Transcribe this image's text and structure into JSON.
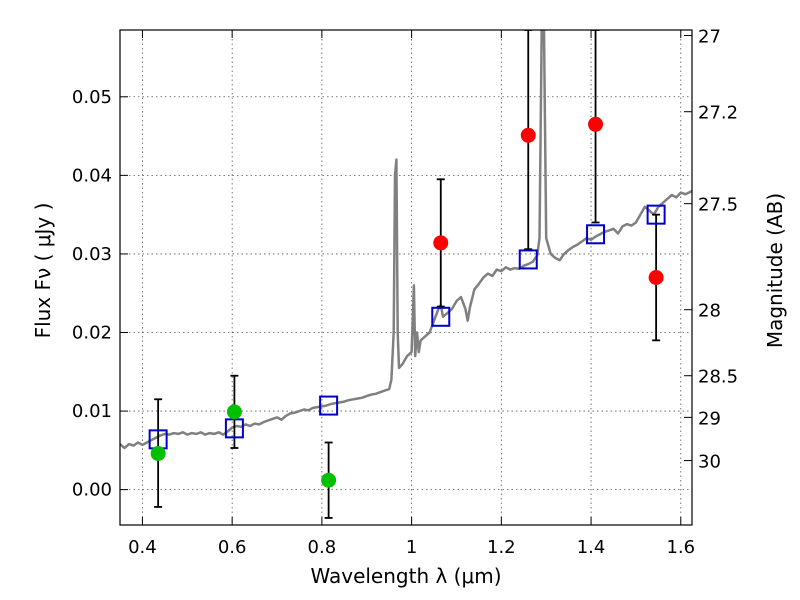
{
  "chart_data": {
    "type": "scatter",
    "xlabel": "Wavelength  λ (μm)",
    "ylabel": "Flux  Fν  ( μJy )",
    "ylabel_right": "Magnitude (AB)",
    "xlim": [
      0.35,
      1.625
    ],
    "ylim": [
      -0.0045,
      0.0585
    ],
    "grid": true,
    "x_ticks": [
      {
        "v": 0.4,
        "label": "0.4"
      },
      {
        "v": 0.6,
        "label": "0.6"
      },
      {
        "v": 0.8,
        "label": "0.8"
      },
      {
        "v": 1.0,
        "label": "1"
      },
      {
        "v": 1.2,
        "label": "1.2"
      },
      {
        "v": 1.4,
        "label": "1.4"
      },
      {
        "v": 1.6,
        "label": "1.6"
      }
    ],
    "y_ticks": [
      {
        "v": 0.0,
        "label": "0.00"
      },
      {
        "v": 0.01,
        "label": "0.01"
      },
      {
        "v": 0.02,
        "label": "0.02"
      },
      {
        "v": 0.03,
        "label": "0.03"
      },
      {
        "v": 0.04,
        "label": "0.04"
      },
      {
        "v": 0.05,
        "label": "0.05"
      }
    ],
    "y2_ticks": [
      {
        "flux": 0.0578,
        "label": "27"
      },
      {
        "flux": 0.0481,
        "label": "27.2"
      },
      {
        "flux": 0.0364,
        "label": "27.5"
      },
      {
        "flux": 0.0229,
        "label": "28"
      },
      {
        "flux": 0.0145,
        "label": "28.5"
      },
      {
        "flux": 0.0092,
        "label": "29"
      },
      {
        "flux": 0.0037,
        "label": "30"
      }
    ],
    "model_spectrum": {
      "color": "#808080",
      "points": [
        [
          0.35,
          0.0058
        ],
        [
          0.36,
          0.0053
        ],
        [
          0.37,
          0.0058
        ],
        [
          0.38,
          0.0056
        ],
        [
          0.39,
          0.006
        ],
        [
          0.4,
          0.0057
        ],
        [
          0.41,
          0.006
        ],
        [
          0.42,
          0.0063
        ],
        [
          0.43,
          0.0066
        ],
        [
          0.44,
          0.0069
        ],
        [
          0.45,
          0.0071
        ],
        [
          0.46,
          0.007
        ],
        [
          0.47,
          0.0072
        ],
        [
          0.48,
          0.0071
        ],
        [
          0.49,
          0.0073
        ],
        [
          0.5,
          0.007
        ],
        [
          0.51,
          0.0072
        ],
        [
          0.52,
          0.0071
        ],
        [
          0.53,
          0.0073
        ],
        [
          0.54,
          0.007
        ],
        [
          0.55,
          0.0072
        ],
        [
          0.56,
          0.0071
        ],
        [
          0.57,
          0.0073
        ],
        [
          0.58,
          0.007
        ],
        [
          0.59,
          0.0074
        ],
        [
          0.6,
          0.0079
        ],
        [
          0.61,
          0.0081
        ],
        [
          0.62,
          0.008
        ],
        [
          0.63,
          0.0083
        ],
        [
          0.64,
          0.0081
        ],
        [
          0.65,
          0.0084
        ],
        [
          0.66,
          0.0083
        ],
        [
          0.67,
          0.0086
        ],
        [
          0.68,
          0.0088
        ],
        [
          0.69,
          0.009
        ],
        [
          0.7,
          0.0092
        ],
        [
          0.71,
          0.0089
        ],
        [
          0.72,
          0.0094
        ],
        [
          0.73,
          0.0097
        ],
        [
          0.74,
          0.0098
        ],
        [
          0.75,
          0.01
        ],
        [
          0.76,
          0.0102
        ],
        [
          0.77,
          0.0101
        ],
        [
          0.78,
          0.0104
        ],
        [
          0.79,
          0.0105
        ],
        [
          0.8,
          0.0106
        ],
        [
          0.81,
          0.0107
        ],
        [
          0.82,
          0.0109
        ],
        [
          0.83,
          0.011
        ],
        [
          0.84,
          0.0111
        ],
        [
          0.85,
          0.0112
        ],
        [
          0.86,
          0.0114
        ],
        [
          0.87,
          0.0115
        ],
        [
          0.88,
          0.0116
        ],
        [
          0.89,
          0.0117
        ],
        [
          0.9,
          0.0119
        ],
        [
          0.91,
          0.0121
        ],
        [
          0.92,
          0.0122
        ],
        [
          0.93,
          0.0124
        ],
        [
          0.94,
          0.0126
        ],
        [
          0.95,
          0.0128
        ],
        [
          0.955,
          0.014
        ],
        [
          0.96,
          0.02
        ],
        [
          0.963,
          0.04
        ],
        [
          0.966,
          0.042
        ],
        [
          0.969,
          0.02
        ],
        [
          0.972,
          0.0155
        ],
        [
          0.98,
          0.016
        ],
        [
          0.99,
          0.017
        ],
        [
          1.0,
          0.0175
        ],
        [
          1.005,
          0.026
        ],
        [
          1.008,
          0.017
        ],
        [
          1.012,
          0.02
        ],
        [
          1.016,
          0.0175
        ],
        [
          1.02,
          0.019
        ],
        [
          1.03,
          0.0195
        ],
        [
          1.04,
          0.02
        ],
        [
          1.05,
          0.0215
        ],
        [
          1.06,
          0.023
        ],
        [
          1.065,
          0.0235
        ],
        [
          1.07,
          0.022
        ],
        [
          1.08,
          0.0225
        ],
        [
          1.09,
          0.023
        ],
        [
          1.1,
          0.024
        ],
        [
          1.11,
          0.0245
        ],
        [
          1.12,
          0.023
        ],
        [
          1.125,
          0.0215
        ],
        [
          1.13,
          0.0232
        ],
        [
          1.14,
          0.0255
        ],
        [
          1.15,
          0.0262
        ],
        [
          1.16,
          0.027
        ],
        [
          1.17,
          0.0275
        ],
        [
          1.18,
          0.0272
        ],
        [
          1.19,
          0.028
        ],
        [
          1.2,
          0.0278
        ],
        [
          1.21,
          0.0283
        ],
        [
          1.22,
          0.028
        ],
        [
          1.23,
          0.0282
        ],
        [
          1.24,
          0.0281
        ],
        [
          1.25,
          0.0285
        ],
        [
          1.26,
          0.0287
        ],
        [
          1.27,
          0.029
        ],
        [
          1.28,
          0.0298
        ],
        [
          1.285,
          0.032
        ],
        [
          1.29,
          0.0585
        ],
        [
          1.295,
          0.0585
        ],
        [
          1.3,
          0.032
        ],
        [
          1.31,
          0.03
        ],
        [
          1.32,
          0.0295
        ],
        [
          1.33,
          0.0292
        ],
        [
          1.34,
          0.03
        ],
        [
          1.35,
          0.0305
        ],
        [
          1.36,
          0.0309
        ],
        [
          1.37,
          0.0312
        ],
        [
          1.38,
          0.0316
        ],
        [
          1.39,
          0.032
        ],
        [
          1.4,
          0.0318
        ],
        [
          1.41,
          0.0322
        ],
        [
          1.42,
          0.0325
        ],
        [
          1.43,
          0.0328
        ],
        [
          1.44,
          0.033
        ],
        [
          1.45,
          0.0332
        ],
        [
          1.46,
          0.0326
        ],
        [
          1.47,
          0.0335
        ],
        [
          1.48,
          0.0338
        ],
        [
          1.49,
          0.0336
        ],
        [
          1.5,
          0.034
        ],
        [
          1.51,
          0.035
        ],
        [
          1.52,
          0.036
        ],
        [
          1.53,
          0.0355
        ],
        [
          1.54,
          0.035
        ],
        [
          1.55,
          0.036
        ],
        [
          1.56,
          0.0365
        ],
        [
          1.57,
          0.037
        ],
        [
          1.58,
          0.0375
        ],
        [
          1.59,
          0.0372
        ],
        [
          1.6,
          0.0378
        ],
        [
          1.61,
          0.0376
        ],
        [
          1.625,
          0.038
        ]
      ]
    },
    "series": [
      {
        "marker": "circle",
        "color": "#00c000",
        "points": [
          {
            "x": 0.435,
            "y": 0.0046,
            "err_low": -0.0022,
            "err_high": 0.0115
          },
          {
            "x": 0.605,
            "y": 0.0099,
            "err_low": 0.0053,
            "err_high": 0.0145
          },
          {
            "x": 0.815,
            "y": 0.0012,
            "err_low": -0.0036,
            "err_high": 0.006
          }
        ]
      },
      {
        "marker": "circle",
        "color": "#ff0000",
        "points": [
          {
            "x": 1.065,
            "y": 0.0314,
            "err_low": 0.0233,
            "err_high": 0.0395
          },
          {
            "x": 1.26,
            "y": 0.0451,
            "err_low": 0.0306,
            "err_high": 0.0585
          },
          {
            "x": 1.41,
            "y": 0.0465,
            "err_low": 0.034,
            "err_high": 0.0585
          },
          {
            "x": 1.545,
            "y": 0.027,
            "err_low": 0.019,
            "err_high": 0.035
          }
        ]
      },
      {
        "marker": "square",
        "color": "#0000cc",
        "points": [
          {
            "x": 0.435,
            "y": 0.0064
          },
          {
            "x": 0.605,
            "y": 0.0078
          },
          {
            "x": 0.815,
            "y": 0.0107
          },
          {
            "x": 1.065,
            "y": 0.022
          },
          {
            "x": 1.26,
            "y": 0.0293
          },
          {
            "x": 1.41,
            "y": 0.0325
          },
          {
            "x": 1.545,
            "y": 0.035
          }
        ]
      }
    ]
  }
}
